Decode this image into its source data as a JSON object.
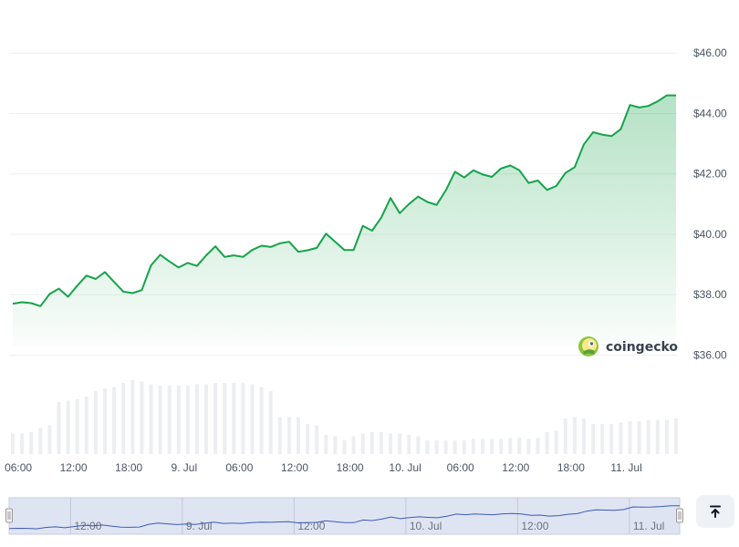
{
  "chart_data": {
    "type": "line",
    "title": "",
    "xlabel": "",
    "ylabel": "",
    "ylim": [
      35.5,
      46.4
    ],
    "y_ticks": [
      "$46.00",
      "$44.00",
      "$42.00",
      "$40.00",
      "$38.00",
      "$36.00"
    ],
    "y_tick_values": [
      46,
      44,
      42,
      40,
      38,
      36
    ],
    "x_ticks": [
      "06:00",
      "12:00",
      "18:00",
      "9. Jul",
      "06:00",
      "12:00",
      "18:00",
      "10. Jul",
      "06:00",
      "12:00",
      "18:00",
      "11. Jul"
    ],
    "x_tick_hours": [
      6,
      12,
      18,
      24,
      30,
      36,
      42,
      48,
      54,
      60,
      66,
      72
    ],
    "x_range_hours": [
      5.4,
      77.4
    ],
    "grid": true,
    "series": [
      {
        "color": "#16a34a",
        "x": [
          5.4,
          6.4,
          7.4,
          8.4,
          9.4,
          10.4,
          11.4,
          12.4,
          13.4,
          14.4,
          15.4,
          16.4,
          17.4,
          18.4,
          19.4,
          20.4,
          21.4,
          22.4,
          23.4,
          24.4,
          25.4,
          26.4,
          27.4,
          28.4,
          29.4,
          30.4,
          31.4,
          32.4,
          33.4,
          34.4,
          35.4,
          36.4,
          37.4,
          38.4,
          39.4,
          40.4,
          41.4,
          42.4,
          43.4,
          44.4,
          45.4,
          46.4,
          47.4,
          48.4,
          49.4,
          50.4,
          51.4,
          52.4,
          53.4,
          54.4,
          55.4,
          56.4,
          57.4,
          58.4,
          59.4,
          60.4,
          61.4,
          62.4,
          63.4,
          64.4,
          65.4,
          66.4,
          67.4,
          68.4,
          69.4,
          70.4,
          71.4,
          72.4,
          73.4,
          74.4,
          75.4,
          76.4,
          77.4
        ],
        "values": [
          37.7,
          37.75,
          37.72,
          37.62,
          38.02,
          38.2,
          37.93,
          38.3,
          38.63,
          38.52,
          38.75,
          38.42,
          38.1,
          38.05,
          38.15,
          38.97,
          39.32,
          39.1,
          38.9,
          39.05,
          38.95,
          39.3,
          39.6,
          39.25,
          39.3,
          39.25,
          39.48,
          39.62,
          39.58,
          39.7,
          39.75,
          39.42,
          39.47,
          39.55,
          40.02,
          39.75,
          39.48,
          39.48,
          40.28,
          40.12,
          40.55,
          41.2,
          40.7,
          41.0,
          41.25,
          41.07,
          40.97,
          41.45,
          42.07,
          41.88,
          42.12,
          41.98,
          41.9,
          42.18,
          42.28,
          42.12,
          41.7,
          41.78,
          41.47,
          41.6,
          42.03,
          42.22,
          42.98,
          43.38,
          43.3,
          43.25,
          43.48,
          44.28,
          44.2,
          44.25,
          44.4,
          44.6,
          44.6
        ]
      }
    ],
    "volume": {
      "values": [
        15,
        15,
        16,
        19,
        21,
        38,
        39,
        40,
        42,
        46,
        48,
        49,
        52,
        54,
        53,
        51,
        50,
        50,
        50,
        50,
        51,
        51,
        52,
        52,
        52,
        52,
        51,
        49,
        46,
        27,
        27,
        27,
        22,
        21,
        14,
        13,
        10,
        13,
        15,
        16,
        16,
        15,
        15,
        14,
        13,
        10,
        10,
        10,
        10,
        10,
        11,
        11,
        11,
        11,
        12,
        12,
        11,
        12,
        16,
        17,
        26,
        27,
        26,
        22,
        22,
        22,
        23,
        24,
        24,
        25,
        25,
        25,
        26
      ],
      "max": 60
    },
    "navigator": {
      "labels": [
        "12:00",
        "9. Jul",
        "12:00",
        "10. Jul",
        "12:00",
        "11. Jul"
      ],
      "label_hours": [
        12,
        24,
        36,
        48,
        60,
        72
      ]
    }
  },
  "brand": {
    "name": "coingecko",
    "icon": "gecko-logo-icon"
  },
  "controls": {
    "scroll_top_icon": "arrow-up-to-line-icon"
  }
}
